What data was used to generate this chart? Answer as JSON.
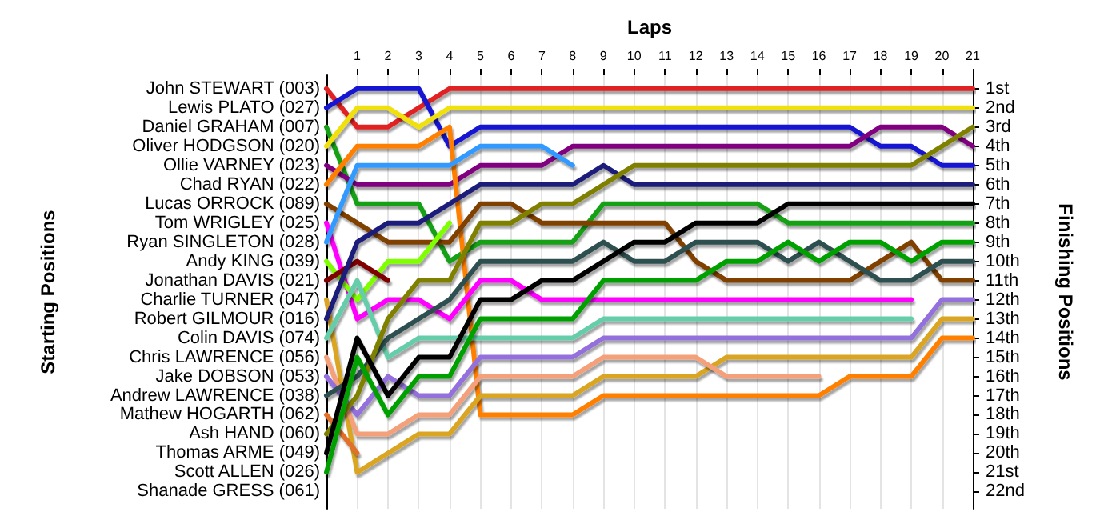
{
  "chart_data": {
    "type": "line",
    "xlabel": "Laps",
    "y2label": "Finishing Positions",
    "annotations": [
      "Starting Positions",
      "Shanade GRESS (061)"
    ],
    "x": [
      0,
      1,
      2,
      3,
      4,
      5,
      6,
      7,
      8,
      9,
      10,
      11,
      12,
      13,
      14,
      15,
      16,
      17,
      18,
      19,
      20,
      21
    ],
    "xlim": [
      0,
      21
    ],
    "xticks": [
      1,
      2,
      3,
      4,
      5,
      6,
      7,
      8,
      9,
      10,
      11,
      12,
      13,
      14,
      15,
      16,
      17,
      18,
      19,
      20,
      21
    ],
    "y2lim": [
      22.9,
      0.3
    ],
    "y2ticks": [
      {
        "value": 1,
        "label": "1st"
      },
      {
        "value": 2,
        "label": "2nd"
      },
      {
        "value": 3,
        "label": "3rd"
      },
      {
        "value": 4,
        "label": "4th"
      },
      {
        "value": 5,
        "label": "5th"
      },
      {
        "value": 6,
        "label": "6th"
      },
      {
        "value": 7,
        "label": "7th"
      },
      {
        "value": 8,
        "label": "8th"
      },
      {
        "value": 9,
        "label": "9th"
      },
      {
        "value": 10,
        "label": "10th"
      },
      {
        "value": 11,
        "label": "11th"
      },
      {
        "value": 12,
        "label": "12th"
      },
      {
        "value": 13,
        "label": "13th"
      },
      {
        "value": 14,
        "label": "14th"
      },
      {
        "value": 15,
        "label": "15th"
      },
      {
        "value": 16,
        "label": "16th"
      },
      {
        "value": 17,
        "label": "17th"
      },
      {
        "value": 18,
        "label": "18th"
      },
      {
        "value": 19,
        "label": "19th"
      },
      {
        "value": 20,
        "label": "20th"
      },
      {
        "value": 21,
        "label": "21st"
      },
      {
        "value": 22,
        "label": "22nd"
      }
    ],
    "grid": true,
    "legend": false,
    "marker": "none",
    "line_style": "solid",
    "series": [
      {
        "name": "John STEWART (003)",
        "axis": "y2",
        "color": "#e02020",
        "values": [
          1,
          3,
          3,
          2,
          1,
          1,
          1,
          1,
          1,
          1,
          1,
          1,
          1,
          1,
          1,
          1,
          1,
          1,
          1,
          1,
          1,
          1
        ]
      },
      {
        "name": "Lewis PLATO (027)",
        "axis": "y2",
        "color": "#1414d2",
        "values": [
          2,
          1,
          1,
          1,
          4,
          3,
          3,
          3,
          3,
          3,
          3,
          3,
          3,
          3,
          3,
          3,
          3,
          3,
          4,
          4,
          5,
          5
        ]
      },
      {
        "name": "Daniel GRAHAM (007)",
        "axis": "y2",
        "color": "#14a014",
        "values": [
          3,
          7,
          7,
          7,
          10,
          9,
          9,
          9,
          9,
          7,
          7,
          7,
          7,
          7,
          7,
          8,
          8,
          8,
          8,
          8,
          8,
          8
        ]
      },
      {
        "name": "Oliver HODGSON (020)",
        "axis": "y2",
        "color": "#f0e010",
        "values": [
          4,
          2,
          2,
          3,
          2,
          2,
          2,
          2,
          2,
          2,
          2,
          2,
          2,
          2,
          2,
          2,
          2,
          2,
          2,
          2,
          2,
          2
        ]
      },
      {
        "name": "Ollie VARNEY (023)",
        "axis": "y2",
        "color": "#800080",
        "values": [
          5,
          6,
          6,
          6,
          6,
          5,
          5,
          5,
          4,
          4,
          4,
          4,
          4,
          4,
          4,
          4,
          4,
          4,
          3,
          3,
          3,
          4
        ]
      },
      {
        "name": "Chad RYAN (022)",
        "axis": "y2",
        "color": "#ff8000",
        "values": [
          6,
          4,
          4,
          4,
          3,
          18,
          18,
          18,
          18,
          17,
          17,
          17,
          17,
          17,
          17,
          17,
          17,
          16,
          16,
          16,
          14,
          14
        ]
      },
      {
        "name": "Lucas ORROCK (089)",
        "axis": "y2",
        "color": "#804000",
        "values": [
          7,
          8,
          9,
          9,
          9,
          7,
          7,
          8,
          8,
          8,
          8,
          8,
          10,
          11,
          11,
          11,
          11,
          11,
          10,
          9,
          11,
          11
        ]
      },
      {
        "name": "Tom WRIGLEY (025)",
        "axis": "y2",
        "color": "#ff00ff",
        "values": [
          8,
          13,
          12,
          12,
          13,
          11,
          11,
          12,
          12,
          12,
          12,
          12,
          12,
          12,
          12,
          12,
          12,
          12,
          12,
          12,
          null,
          null
        ]
      },
      {
        "name": "Ryan SINGLETON (028)",
        "axis": "y2",
        "color": "#3399ff",
        "values": [
          9,
          5,
          5,
          5,
          5,
          4,
          4,
          4,
          5,
          null,
          null,
          null,
          null,
          null,
          null,
          null,
          null,
          null,
          null,
          null,
          null,
          null
        ]
      },
      {
        "name": "Andy KING (039)",
        "axis": "y2",
        "color": "#80ff00",
        "values": [
          10,
          12,
          10,
          10,
          8,
          null,
          null,
          null,
          null,
          null,
          null,
          null,
          null,
          null,
          null,
          null,
          null,
          null,
          null,
          null,
          null,
          null
        ]
      },
      {
        "name": "Jonathan DAVIS (021)",
        "axis": "y2",
        "color": "#800000",
        "values": [
          11,
          10,
          11,
          null,
          null,
          null,
          null,
          null,
          null,
          null,
          null,
          null,
          null,
          null,
          null,
          null,
          null,
          null,
          null,
          null,
          null,
          null
        ]
      },
      {
        "name": "Charlie TURNER (047)",
        "axis": "y2",
        "color": "#daa520",
        "values": [
          12,
          21,
          20,
          19,
          19,
          17,
          17,
          17,
          17,
          16,
          16,
          16,
          16,
          15,
          15,
          15,
          15,
          15,
          15,
          15,
          13,
          13
        ]
      },
      {
        "name": "Robert GILMOUR (016)",
        "axis": "y2",
        "color": "#1f1f7a",
        "values": [
          13,
          9,
          8,
          8,
          7,
          6,
          6,
          6,
          6,
          5,
          6,
          6,
          6,
          6,
          6,
          6,
          6,
          6,
          6,
          6,
          6,
          6
        ]
      },
      {
        "name": "Colin DAVIS (074)",
        "axis": "y2",
        "color": "#66cdaa",
        "values": [
          14,
          11,
          15,
          14,
          14,
          14,
          14,
          14,
          14,
          13,
          13,
          13,
          13,
          13,
          13,
          13,
          13,
          13,
          13,
          13,
          null,
          null
        ]
      },
      {
        "name": "Chris LAWRENCE (056)",
        "axis": "y2",
        "color": "#f4a07a",
        "values": [
          15,
          19,
          19,
          18,
          18,
          16,
          16,
          16,
          16,
          15,
          15,
          15,
          15,
          16,
          16,
          16,
          16,
          null,
          null,
          null,
          null,
          null
        ]
      },
      {
        "name": "Jake DOBSON (053)",
        "axis": "y2",
        "color": "#9370db",
        "values": [
          16,
          18,
          16,
          17,
          17,
          15,
          15,
          15,
          15,
          14,
          14,
          14,
          14,
          14,
          14,
          14,
          14,
          14,
          14,
          14,
          12,
          12
        ]
      },
      {
        "name": "Andrew LAWRENCE (038)",
        "axis": "y2",
        "color": "#2f4f4f",
        "values": [
          17,
          16,
          14,
          13,
          12,
          10,
          10,
          10,
          10,
          9,
          10,
          10,
          9,
          9,
          9,
          10,
          9,
          10,
          11,
          11,
          10,
          10
        ]
      },
      {
        "name": "Mathew HOGARTH (062)",
        "axis": "y2",
        "color": "#e0702a",
        "values": [
          18,
          20,
          null,
          null,
          null,
          null,
          null,
          null,
          null,
          null,
          null,
          null,
          null,
          null,
          null,
          null,
          null,
          null,
          null,
          null,
          null,
          null
        ]
      },
      {
        "name": "Ash HAND (060)",
        "axis": "y2",
        "color": "#808000",
        "values": [
          19,
          17,
          13,
          11,
          11,
          8,
          8,
          7,
          7,
          6,
          5,
          5,
          5,
          5,
          5,
          5,
          5,
          5,
          5,
          5,
          4,
          3
        ]
      },
      {
        "name": "Thomas ARME (049)",
        "axis": "y2",
        "color": "#000000",
        "values": [
          20,
          14,
          17,
          15,
          15,
          12,
          12,
          11,
          11,
          10,
          9,
          9,
          8,
          8,
          8,
          7,
          7,
          7,
          7,
          7,
          7,
          7
        ]
      },
      {
        "name": "Scott ALLEN (026)",
        "axis": "y2",
        "color": "#00a000",
        "values": [
          21,
          15,
          18,
          16,
          16,
          13,
          13,
          13,
          13,
          11,
          11,
          11,
          11,
          10,
          10,
          9,
          10,
          9,
          9,
          10,
          9,
          9
        ]
      }
    ]
  }
}
